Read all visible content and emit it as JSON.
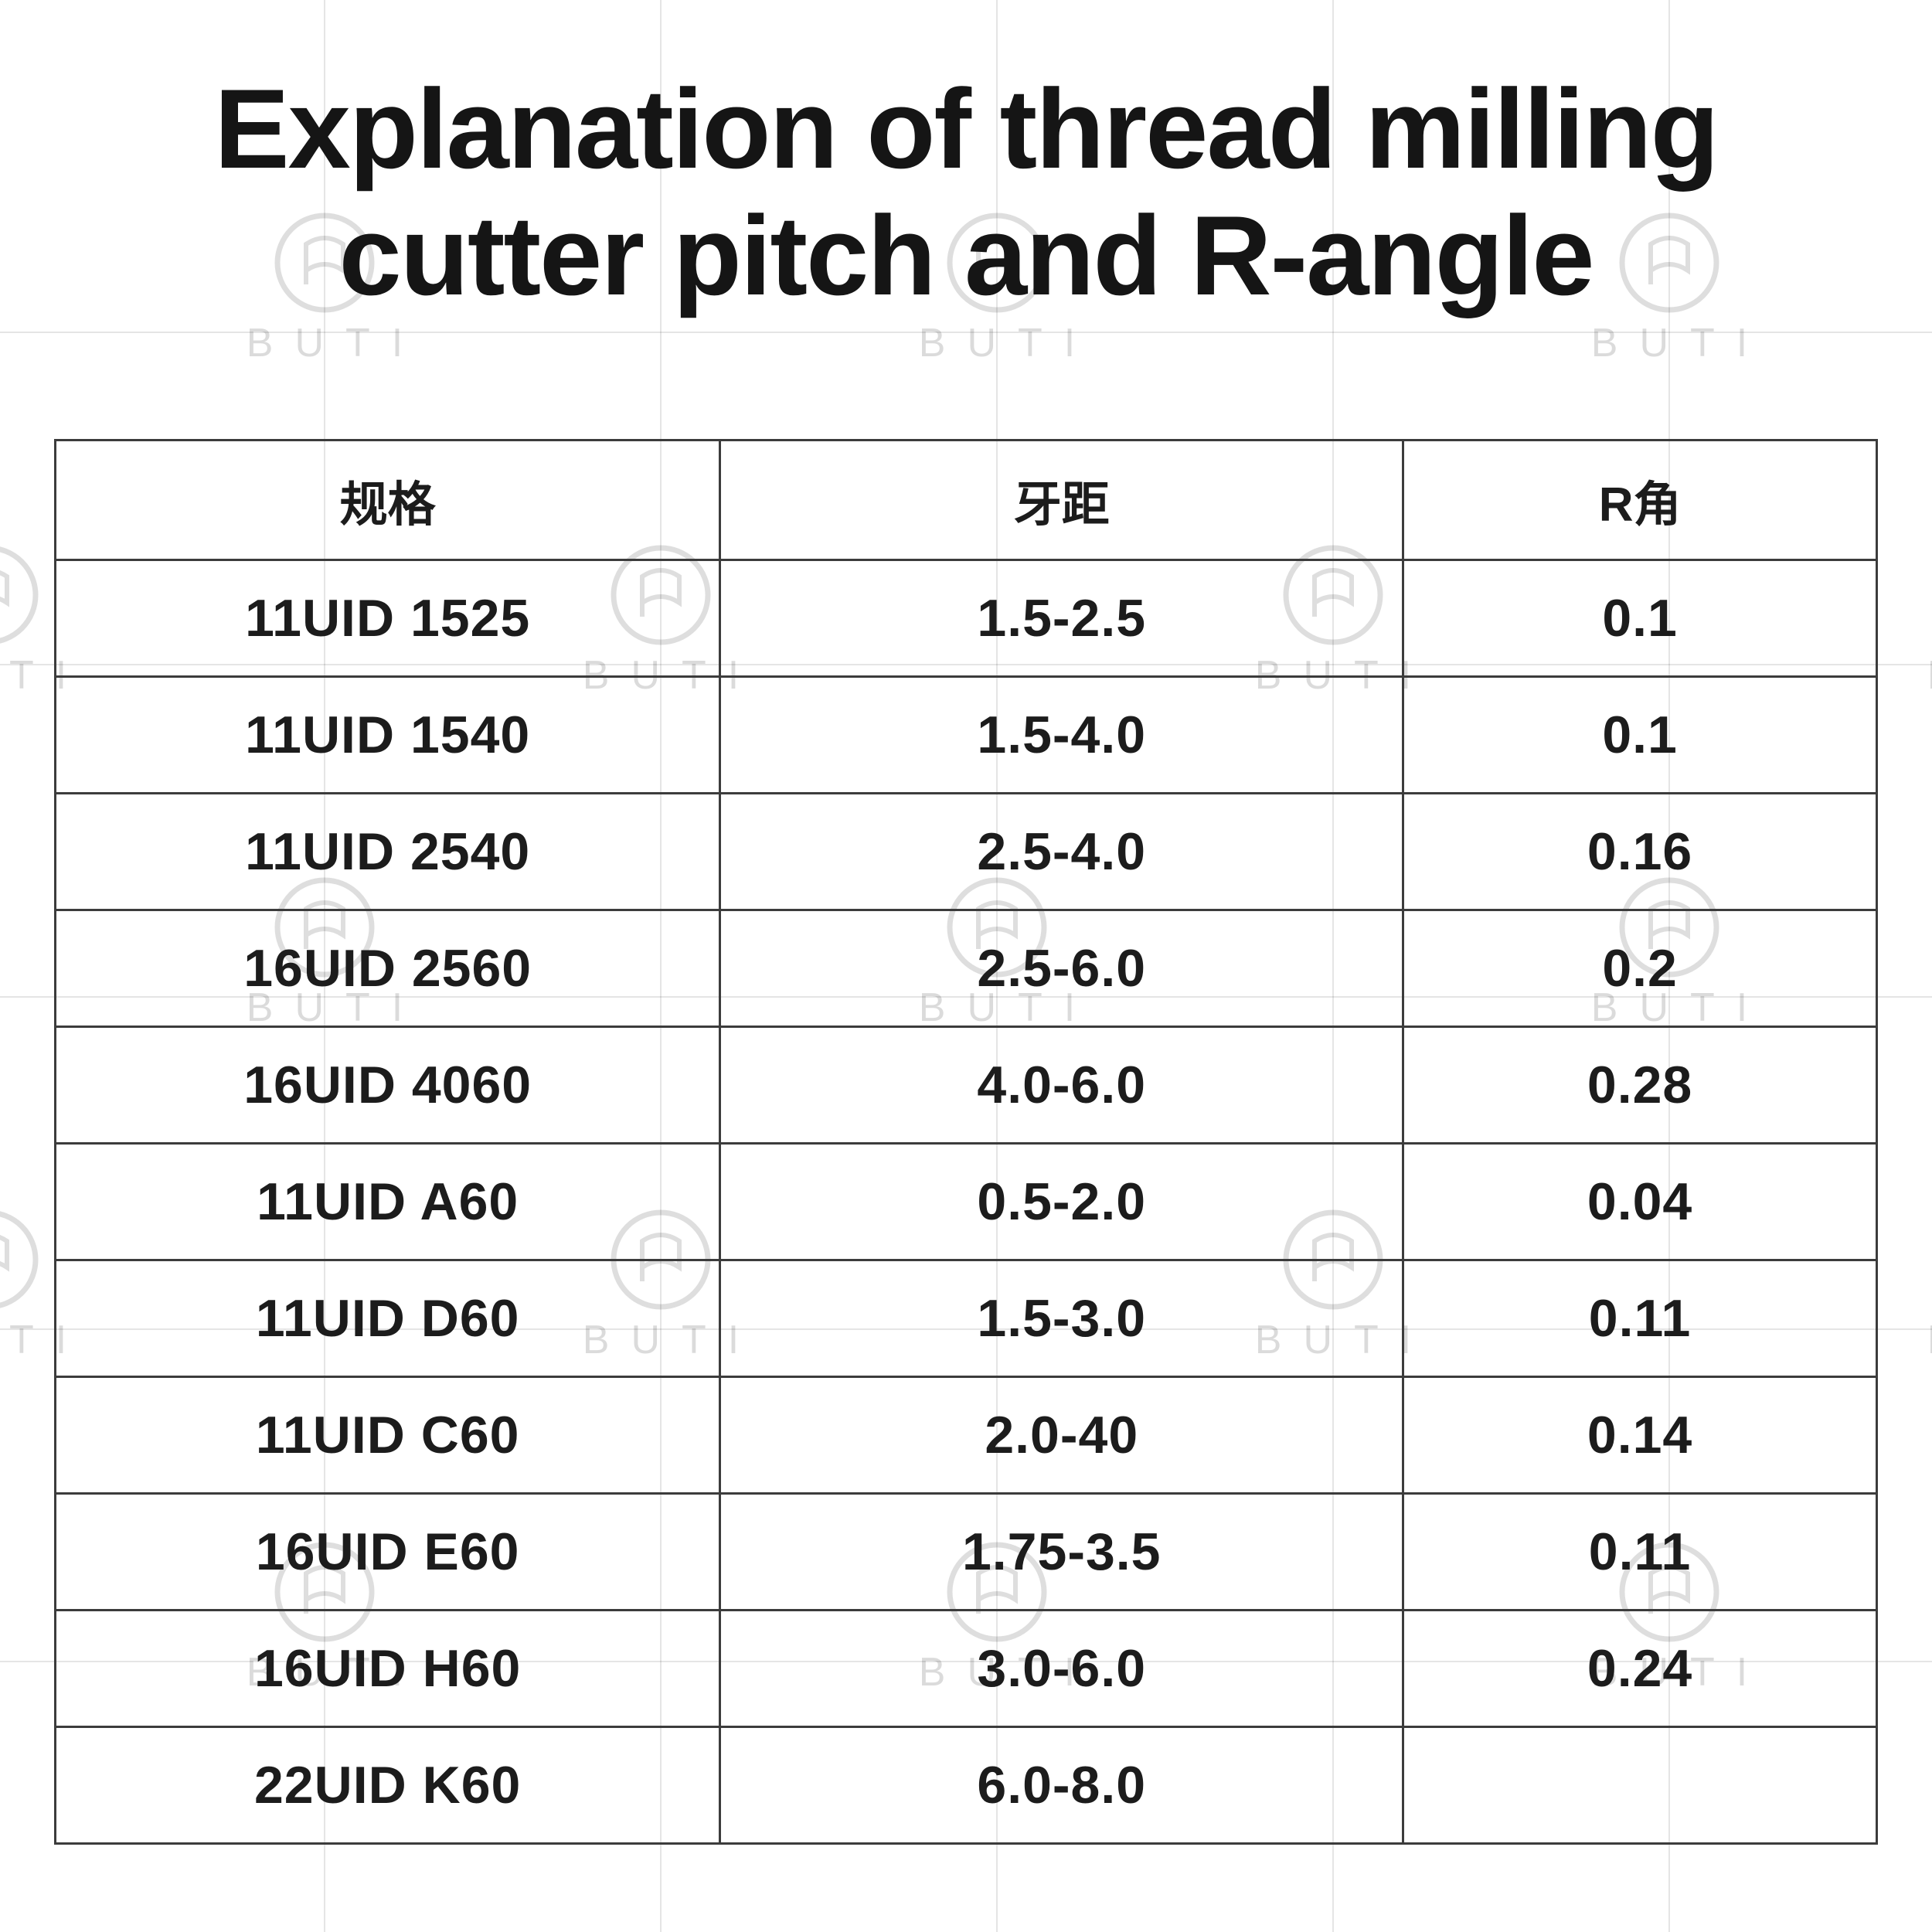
{
  "title": {
    "line1": "Explanation of thread milling",
    "line2": "cutter pitch and R-angle"
  },
  "watermark": {
    "text": "BUTI",
    "logo": "buti-circle-logo"
  },
  "colors": {
    "text": "#1c1c1c",
    "table_border": "#3c3c3c",
    "watermark_gray": "rgba(0,0,0,0.13)",
    "background": "#ffffff"
  },
  "chart_data": {
    "type": "table",
    "title": "Explanation of thread milling cutter pitch and R-angle",
    "columns": [
      "规格",
      "牙距",
      "R角"
    ],
    "rows": [
      [
        "11UID 1525",
        "1.5-2.5",
        "0.1"
      ],
      [
        "11UID 1540",
        "1.5-4.0",
        "0.1"
      ],
      [
        "11UID 2540",
        "2.5-4.0",
        "0.16"
      ],
      [
        "16UID 2560",
        "2.5-6.0",
        "0.2"
      ],
      [
        "16UID 4060",
        "4.0-6.0",
        "0.28"
      ],
      [
        "11UID A60",
        "0.5-2.0",
        "0.04"
      ],
      [
        "11UID D60",
        "1.5-3.0",
        "0.11"
      ],
      [
        "11UID C60",
        "2.0-40",
        "0.14"
      ],
      [
        "16UID E60",
        "1.75-3.5",
        "0.11"
      ],
      [
        "16UID H60",
        "3.0-6.0",
        "0.24"
      ],
      [
        "22UID K60",
        "6.0-8.0",
        ""
      ]
    ]
  }
}
